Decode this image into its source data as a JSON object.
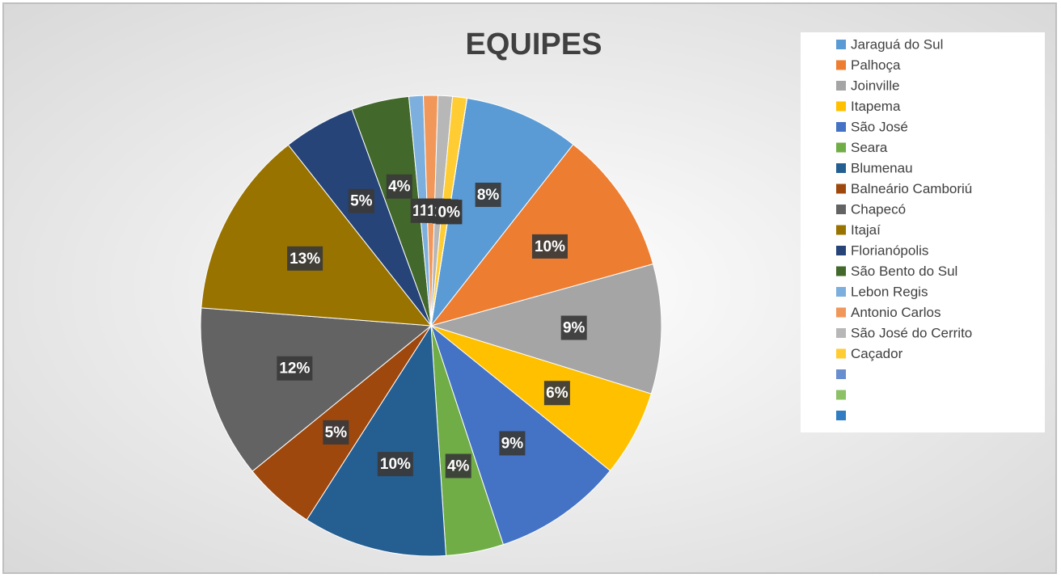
{
  "chart_data": {
    "type": "pie",
    "title": "EQUIPES",
    "categories": [
      "Jaraguá do Sul",
      "Palhoça",
      "Joinville",
      "Itapema",
      "São José",
      "Seara",
      "Blumenau",
      "Balneário Camboriú",
      "Chapecó",
      "Itajaí",
      "Florianópolis",
      "São Bento do Sul",
      "Lebon Regis",
      "Antonio Carlos",
      "São José do Cerrito",
      "Caçador",
      null,
      null,
      null
    ],
    "values": [
      8,
      10,
      9,
      6,
      9,
      4,
      10,
      5,
      12,
      13,
      5,
      4,
      1,
      1,
      1,
      1,
      0,
      0,
      0
    ],
    "value_labels": [
      "8%",
      "10%",
      "9%",
      "6%",
      "9%",
      "4%",
      "10%",
      "5%",
      "12%",
      "13%",
      "5%",
      "4%",
      "1%",
      "1%",
      "1%",
      "1%",
      "0%",
      "0%",
      "0%"
    ],
    "colors": [
      "#5b9bd5",
      "#ed7d31",
      "#a5a5a5",
      "#ffc000",
      "#4472c4",
      "#70ad47",
      "#255e91",
      "#9e480e",
      "#636363",
      "#997300",
      "#264478",
      "#43682b",
      "#7cafdd",
      "#f1975a",
      "#b7b7b7",
      "#ffcd33",
      "#698ed0",
      "#8cc168",
      "#327dc2"
    ],
    "legend": "right"
  }
}
